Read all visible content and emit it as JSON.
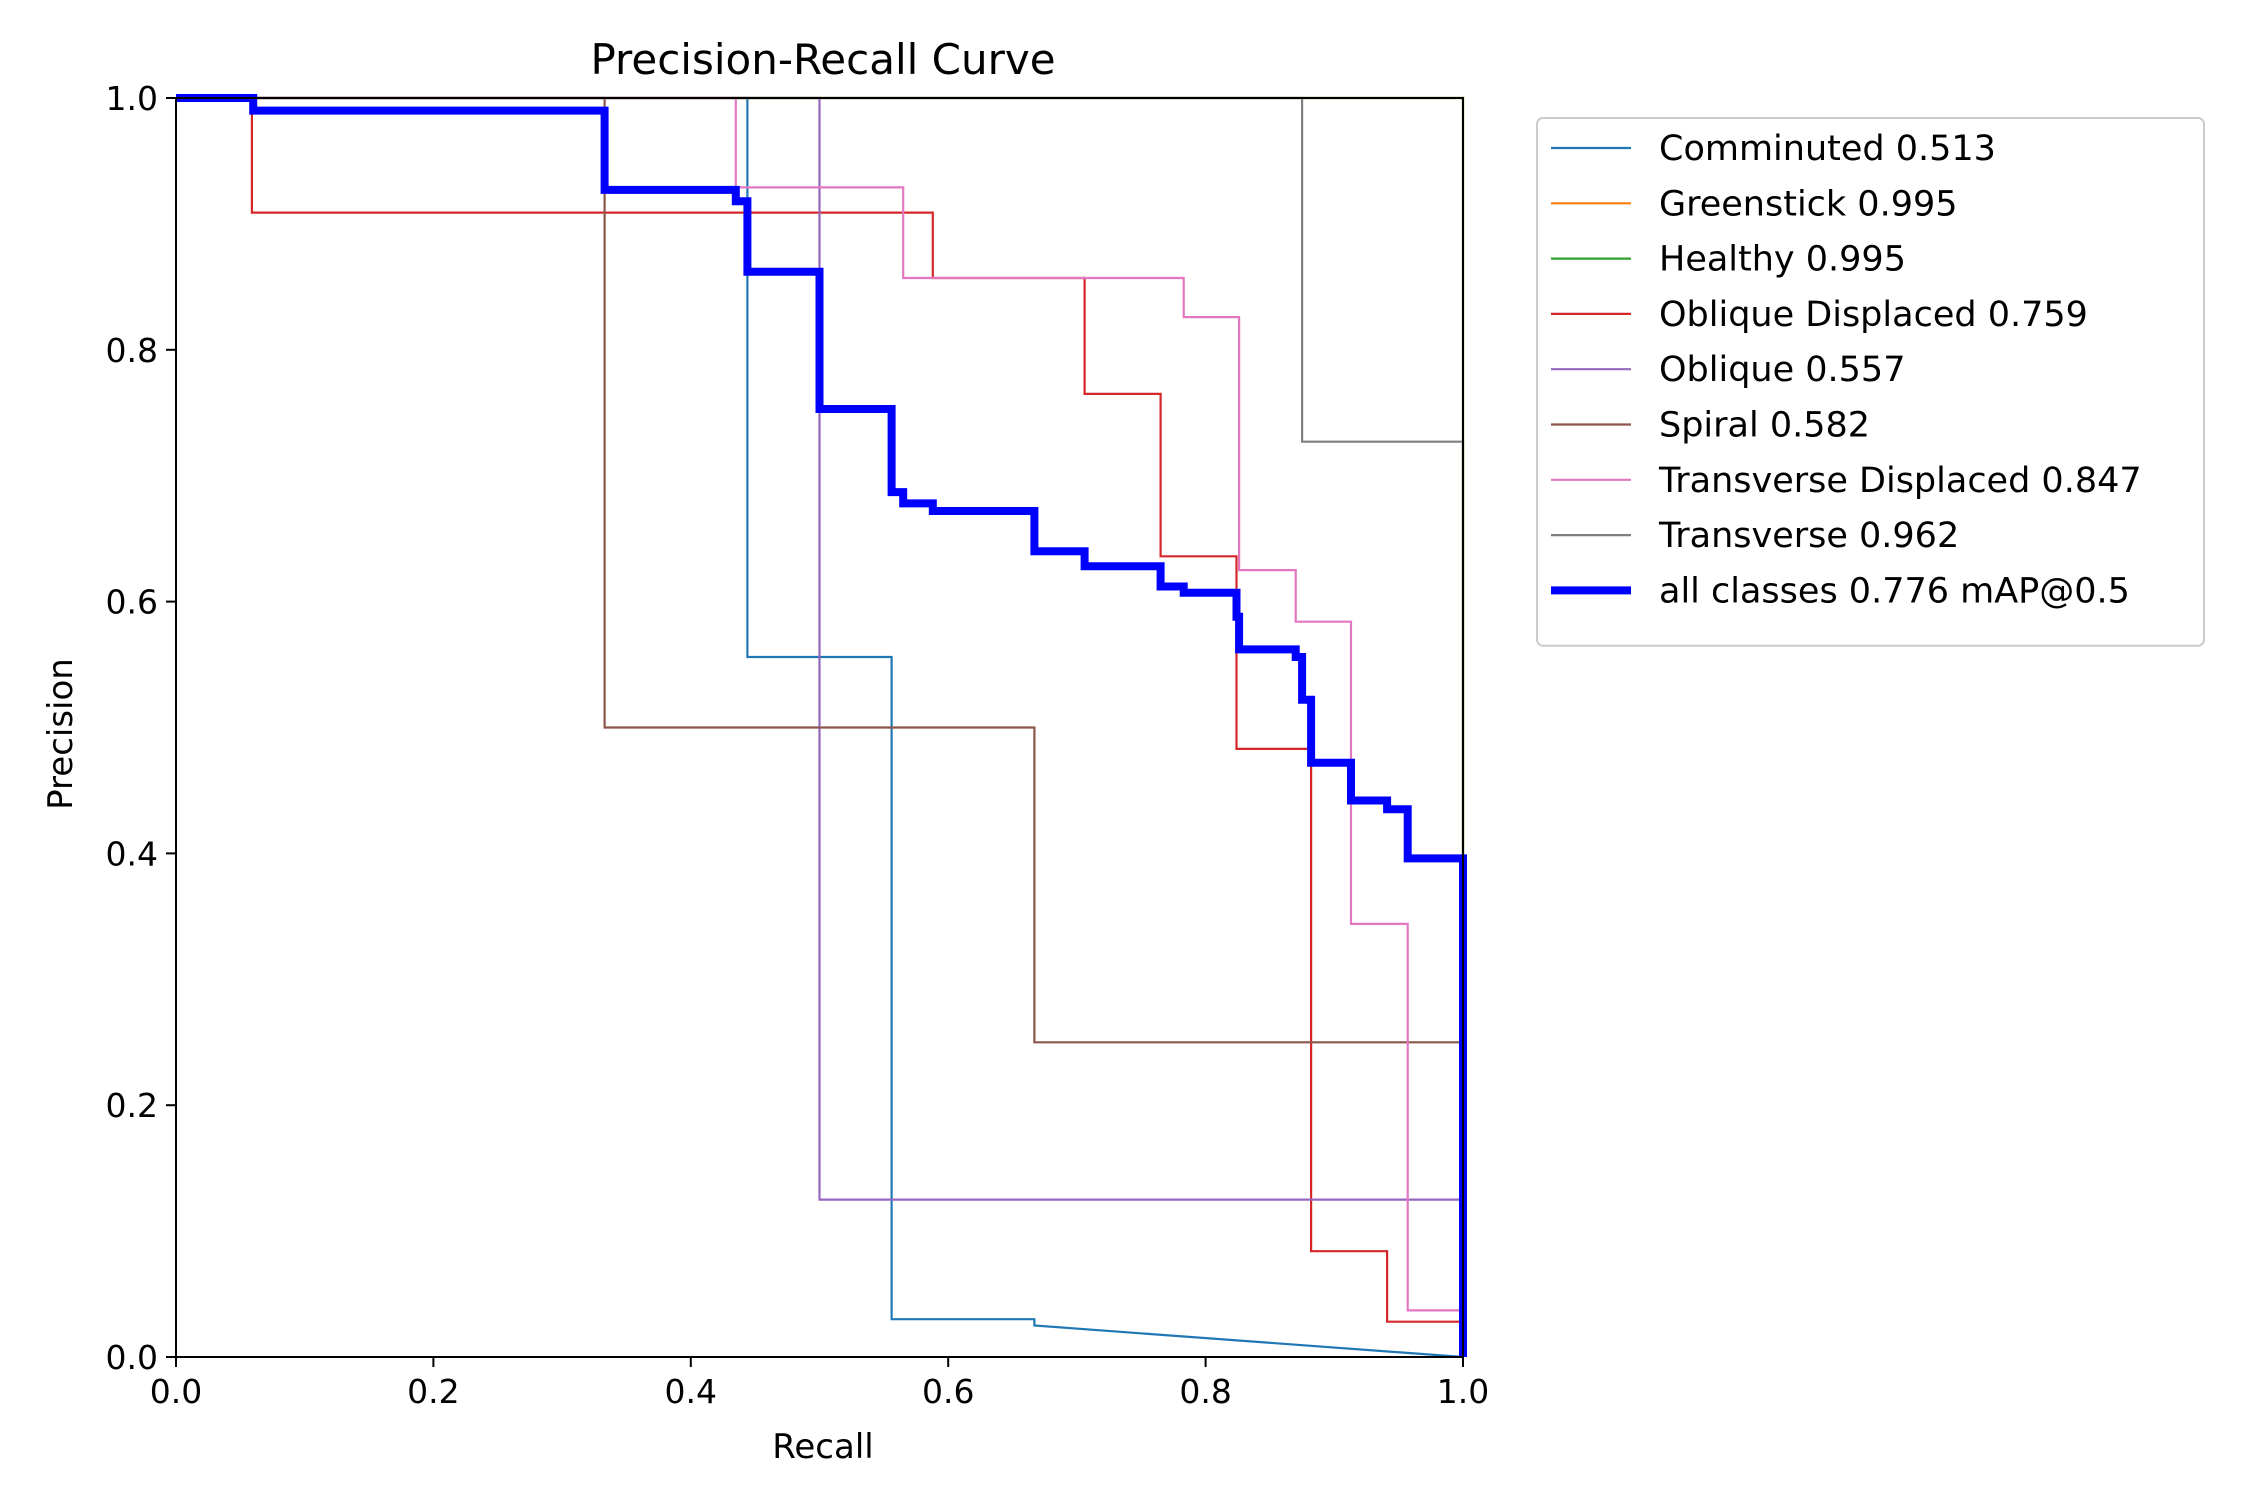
{
  "chart_data": {
    "type": "line",
    "title": "Precision-Recall Curve",
    "xlabel": "Recall",
    "ylabel": "Precision",
    "xlim": [
      0,
      1
    ],
    "ylim": [
      0,
      1
    ],
    "x_ticks": [
      "0.0",
      "0.2",
      "0.4",
      "0.6",
      "0.8",
      "1.0"
    ],
    "y_ticks": [
      "0.0",
      "0.2",
      "0.4",
      "0.6",
      "0.8",
      "1.0"
    ],
    "grid": false,
    "legend_position": "outside-top-right",
    "series": [
      {
        "name": "Comminuted 0.513",
        "color": "#1f77b4",
        "points": [
          [
            0,
            1
          ],
          [
            0.444,
            1
          ],
          [
            0.444,
            0.556
          ],
          [
            0.556,
            0.556
          ],
          [
            0.556,
            0.03
          ],
          [
            0.667,
            0.03
          ],
          [
            0.667,
            0.025
          ],
          [
            1,
            0
          ]
        ]
      },
      {
        "name": "Greenstick 0.995",
        "color": "#ff7f0e",
        "points": [
          [
            0,
            1
          ],
          [
            1,
            1
          ],
          [
            1,
            0
          ]
        ]
      },
      {
        "name": "Healthy 0.995",
        "color": "#2ca02c",
        "points": [
          [
            0,
            1
          ],
          [
            1,
            1
          ],
          [
            1,
            0
          ]
        ]
      },
      {
        "name": "Oblique Displaced 0.759",
        "color": "#d62728",
        "points": [
          [
            0,
            1
          ],
          [
            0.059,
            1
          ],
          [
            0.059,
            0.909
          ],
          [
            0.588,
            0.909
          ],
          [
            0.588,
            0.857
          ],
          [
            0.706,
            0.857
          ],
          [
            0.706,
            0.765
          ],
          [
            0.765,
            0.765
          ],
          [
            0.765,
            0.636
          ],
          [
            0.824,
            0.636
          ],
          [
            0.824,
            0.483
          ],
          [
            0.882,
            0.483
          ],
          [
            0.882,
            0.084
          ],
          [
            0.941,
            0.084
          ],
          [
            0.941,
            0.028
          ],
          [
            1,
            0.028
          ],
          [
            1,
            0
          ]
        ]
      },
      {
        "name": "Oblique 0.557",
        "color": "#9467bd",
        "points": [
          [
            0,
            1
          ],
          [
            0.5,
            1
          ],
          [
            0.5,
            0.125
          ],
          [
            1,
            0.125
          ],
          [
            1,
            0
          ]
        ]
      },
      {
        "name": "Spiral 0.582",
        "color": "#8c564b",
        "points": [
          [
            0,
            1
          ],
          [
            0.333,
            1
          ],
          [
            0.333,
            0.5
          ],
          [
            0.667,
            0.5
          ],
          [
            0.667,
            0.25
          ],
          [
            1,
            0.25
          ],
          [
            1,
            0
          ]
        ]
      },
      {
        "name": "Transverse Displaced 0.847",
        "color": "#e377c2",
        "points": [
          [
            0,
            1
          ],
          [
            0.435,
            1
          ],
          [
            0.435,
            0.929
          ],
          [
            0.565,
            0.929
          ],
          [
            0.565,
            0.857
          ],
          [
            0.783,
            0.857
          ],
          [
            0.783,
            0.826
          ],
          [
            0.826,
            0.826
          ],
          [
            0.826,
            0.625
          ],
          [
            0.87,
            0.625
          ],
          [
            0.87,
            0.584
          ],
          [
            0.913,
            0.584
          ],
          [
            0.913,
            0.344
          ],
          [
            0.957,
            0.344
          ],
          [
            0.957,
            0.037
          ],
          [
            1,
            0.037
          ],
          [
            1,
            0
          ]
        ]
      },
      {
        "name": "Transverse 0.962",
        "color": "#7f7f7f",
        "points": [
          [
            0,
            1
          ],
          [
            0.875,
            1
          ],
          [
            0.875,
            0.727
          ],
          [
            1,
            0.727
          ],
          [
            1,
            0
          ]
        ]
      },
      {
        "name": "all classes 0.776 mAP@0.5",
        "color": "#0000ff",
        "bold": true,
        "points": [
          [
            0,
            1
          ],
          [
            0.06,
            1
          ],
          [
            0.06,
            0.99
          ],
          [
            0.333,
            0.99
          ],
          [
            0.333,
            0.927
          ],
          [
            0.435,
            0.927
          ],
          [
            0.435,
            0.918
          ],
          [
            0.444,
            0.918
          ],
          [
            0.444,
            0.862
          ],
          [
            0.5,
            0.862
          ],
          [
            0.5,
            0.753
          ],
          [
            0.556,
            0.753
          ],
          [
            0.556,
            0.687
          ],
          [
            0.565,
            0.687
          ],
          [
            0.565,
            0.678
          ],
          [
            0.588,
            0.678
          ],
          [
            0.588,
            0.672
          ],
          [
            0.667,
            0.672
          ],
          [
            0.667,
            0.64
          ],
          [
            0.706,
            0.64
          ],
          [
            0.706,
            0.628
          ],
          [
            0.765,
            0.628
          ],
          [
            0.765,
            0.612
          ],
          [
            0.783,
            0.612
          ],
          [
            0.783,
            0.607
          ],
          [
            0.824,
            0.607
          ],
          [
            0.824,
            0.588
          ],
          [
            0.826,
            0.588
          ],
          [
            0.826,
            0.562
          ],
          [
            0.87,
            0.562
          ],
          [
            0.87,
            0.556
          ],
          [
            0.875,
            0.556
          ],
          [
            0.875,
            0.522
          ],
          [
            0.882,
            0.522
          ],
          [
            0.882,
            0.472
          ],
          [
            0.913,
            0.472
          ],
          [
            0.913,
            0.442
          ],
          [
            0.941,
            0.442
          ],
          [
            0.941,
            0.435
          ],
          [
            0.957,
            0.435
          ],
          [
            0.957,
            0.396
          ],
          [
            1,
            0.396
          ],
          [
            1,
            0
          ]
        ]
      }
    ]
  }
}
